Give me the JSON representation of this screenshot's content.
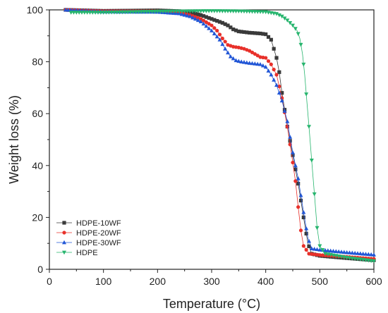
{
  "chart_data": {
    "type": "scatter",
    "title": "",
    "xlabel": "Temperature (°C)",
    "ylabel": "Weight loss (%)",
    "xlim": [
      0,
      600
    ],
    "ylim": [
      0,
      100
    ],
    "xticks": [
      0,
      100,
      200,
      300,
      400,
      500,
      600
    ],
    "yticks": [
      0,
      20,
      40,
      60,
      80,
      100
    ],
    "grid": false,
    "legend_position": "bottom-left",
    "series": [
      {
        "name": "HDPE-10WF",
        "color": "#3a3a3a",
        "marker": "square",
        "points": [
          [
            30,
            100
          ],
          [
            100,
            99.6
          ],
          [
            200,
            99.8
          ],
          [
            240,
            99.5
          ],
          [
            260,
            99.1
          ],
          [
            280,
            98.0
          ],
          [
            300,
            96.5
          ],
          [
            320,
            95.0
          ],
          [
            330,
            94.0
          ],
          [
            340,
            92.5
          ],
          [
            350,
            91.7
          ],
          [
            370,
            91.2
          ],
          [
            390,
            90.9
          ],
          [
            400,
            90.6
          ],
          [
            410,
            88.5
          ],
          [
            420,
            81.5
          ],
          [
            425,
            76.0
          ],
          [
            430,
            68.0
          ],
          [
            440,
            55.0
          ],
          [
            450,
            44.0
          ],
          [
            460,
            33.0
          ],
          [
            470,
            20.0
          ],
          [
            478,
            10.0
          ],
          [
            485,
            6.0
          ],
          [
            500,
            5.2
          ],
          [
            550,
            4.3
          ],
          [
            600,
            3.5
          ]
        ]
      },
      {
        "name": "HDPE-20WF",
        "color": "#e8302a",
        "marker": "circle",
        "points": [
          [
            30,
            100
          ],
          [
            100,
            99.5
          ],
          [
            200,
            99.5
          ],
          [
            240,
            99.0
          ],
          [
            260,
            98.0
          ],
          [
            280,
            96.5
          ],
          [
            300,
            94.0
          ],
          [
            310,
            92.0
          ],
          [
            320,
            89.0
          ],
          [
            330,
            86.5
          ],
          [
            340,
            85.8
          ],
          [
            350,
            85.5
          ],
          [
            360,
            85.0
          ],
          [
            370,
            84.2
          ],
          [
            380,
            83.0
          ],
          [
            390,
            81.8
          ],
          [
            400,
            81.5
          ],
          [
            410,
            79.0
          ],
          [
            420,
            75.0
          ],
          [
            430,
            66.0
          ],
          [
            440,
            55.0
          ],
          [
            448,
            44.0
          ],
          [
            455,
            34.0
          ],
          [
            460,
            24.0
          ],
          [
            465,
            15.0
          ],
          [
            470,
            9.0
          ],
          [
            480,
            6.0
          ],
          [
            500,
            5.5
          ],
          [
            550,
            4.8
          ],
          [
            600,
            4.0
          ]
        ]
      },
      {
        "name": "HDPE-30WF",
        "color": "#2156d6",
        "marker": "triangle-up",
        "points": [
          [
            30,
            100
          ],
          [
            100,
            99.3
          ],
          [
            200,
            99.2
          ],
          [
            240,
            98.6
          ],
          [
            260,
            97.5
          ],
          [
            280,
            95.5
          ],
          [
            300,
            92.0
          ],
          [
            315,
            88.5
          ],
          [
            325,
            85.0
          ],
          [
            335,
            82.0
          ],
          [
            345,
            80.5
          ],
          [
            355,
            80.0
          ],
          [
            370,
            79.5
          ],
          [
            390,
            79.0
          ],
          [
            400,
            78.0
          ],
          [
            410,
            75.0
          ],
          [
            420,
            71.0
          ],
          [
            430,
            65.0
          ],
          [
            440,
            57.0
          ],
          [
            450,
            45.0
          ],
          [
            460,
            35.0
          ],
          [
            470,
            22.0
          ],
          [
            478,
            12.0
          ],
          [
            485,
            8.0
          ],
          [
            500,
            7.5
          ],
          [
            550,
            6.5
          ],
          [
            600,
            5.6
          ]
        ]
      },
      {
        "name": "HDPE",
        "color": "#27b56e",
        "marker": "triangle-down",
        "points": [
          [
            40,
            99
          ],
          [
            100,
            99
          ],
          [
            200,
            99.4
          ],
          [
            300,
            99.6
          ],
          [
            350,
            99.5
          ],
          [
            400,
            99.2
          ],
          [
            420,
            98.5
          ],
          [
            430,
            97.5
          ],
          [
            440,
            96.0
          ],
          [
            450,
            94.0
          ],
          [
            458,
            92.0
          ],
          [
            463,
            89.0
          ],
          [
            468,
            83.0
          ],
          [
            472,
            75.0
          ],
          [
            476,
            65.0
          ],
          [
            480,
            55.0
          ],
          [
            485,
            42.0
          ],
          [
            490,
            29.0
          ],
          [
            495,
            16.0
          ],
          [
            500,
            9.0
          ],
          [
            510,
            6.0
          ],
          [
            550,
            4.5
          ],
          [
            600,
            3.2
          ]
        ]
      }
    ]
  }
}
